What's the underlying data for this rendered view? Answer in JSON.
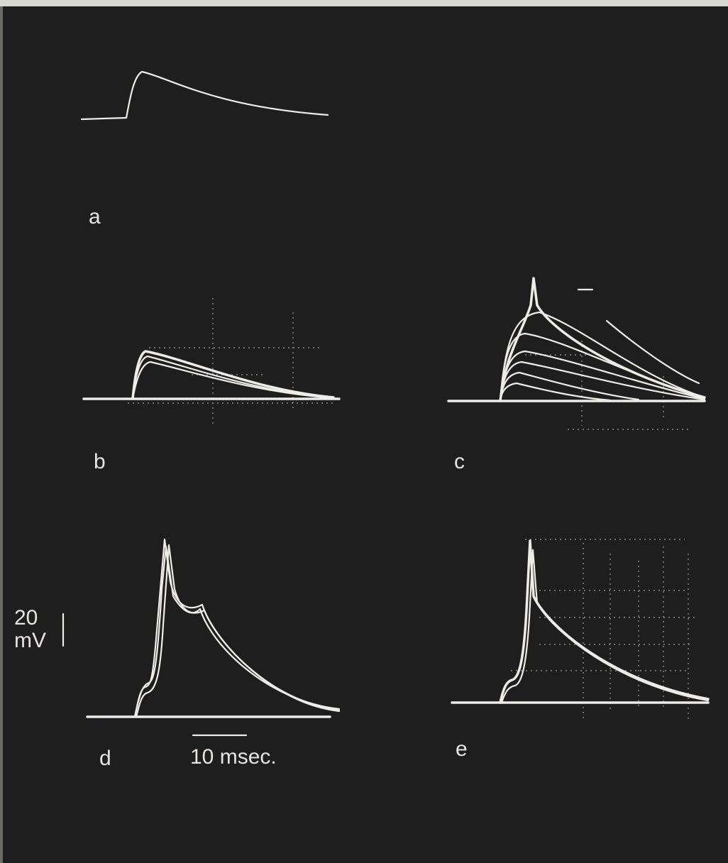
{
  "panels": [
    {
      "label": "a"
    },
    {
      "label": "b"
    },
    {
      "label": "c"
    },
    {
      "label": "d"
    },
    {
      "label": "e"
    }
  ],
  "scale_bars": {
    "voltage": {
      "value": "20",
      "unit": "mV"
    },
    "time": "10 msec."
  }
}
